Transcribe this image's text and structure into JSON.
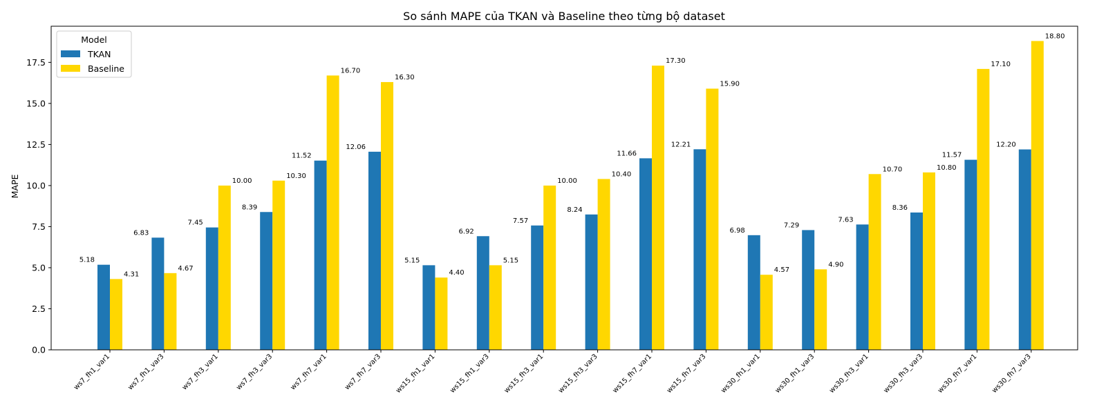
{
  "chart_data": {
    "type": "bar",
    "title": "So sánh MAPE của TKAN và Baseline theo từng bộ dataset",
    "xlabel": "",
    "ylabel": "MAPE",
    "ylim": [
      0,
      19.7
    ],
    "yticks": [
      "0.0",
      "2.5",
      "5.0",
      "7.5",
      "10.0",
      "12.5",
      "15.0",
      "17.5"
    ],
    "ytick_values": [
      0,
      2.5,
      5,
      7.5,
      10,
      12.5,
      15,
      17.5
    ],
    "grid": false,
    "legend": {
      "title": "Model",
      "placement": "top-left"
    },
    "categories": [
      "ws7_fh1_var1",
      "ws7_fh1_var3",
      "ws7_fh3_var1",
      "ws7_fh3_var3",
      "ws7_fh7_var1",
      "ws7_fh7_var3",
      "ws15_fh1_var1",
      "ws15_fh1_var3",
      "ws15_fh3_var1",
      "ws15_fh3_var3",
      "ws15_fh7_var1",
      "ws15_fh7_var3",
      "ws30_fh1_var1",
      "ws30_fh1_var3",
      "ws30_fh3_var1",
      "ws30_fh3_var3",
      "ws30_fh7_var1",
      "ws30_fh7_var3"
    ],
    "series": [
      {
        "name": "TKAN",
        "color": "#1f77b4",
        "values": [
          5.18,
          6.83,
          7.45,
          8.39,
          11.52,
          12.06,
          5.15,
          6.92,
          7.57,
          8.24,
          11.66,
          12.21,
          6.98,
          7.29,
          7.63,
          8.36,
          11.57,
          12.2
        ],
        "labels": [
          "5.18",
          "6.83",
          "7.45",
          "8.39",
          "11.52",
          "12.06",
          "5.15",
          "6.92",
          "7.57",
          "8.24",
          "11.66",
          "12.21",
          "6.98",
          "7.29",
          "7.63",
          "8.36",
          "11.57",
          "12.20"
        ]
      },
      {
        "name": "Baseline",
        "color": "#ffd700",
        "values": [
          4.31,
          4.67,
          10.0,
          10.3,
          16.7,
          16.3,
          4.4,
          5.15,
          10.0,
          10.4,
          17.3,
          15.9,
          4.57,
          4.9,
          10.7,
          10.8,
          17.1,
          18.8
        ],
        "labels": [
          "4.31",
          "4.67",
          "10.00",
          "10.30",
          "16.70",
          "16.30",
          "4.40",
          "5.15",
          "10.00",
          "10.40",
          "17.30",
          "15.90",
          "4.57",
          "4.90",
          "10.70",
          "10.80",
          "17.10",
          "18.80"
        ]
      }
    ]
  }
}
